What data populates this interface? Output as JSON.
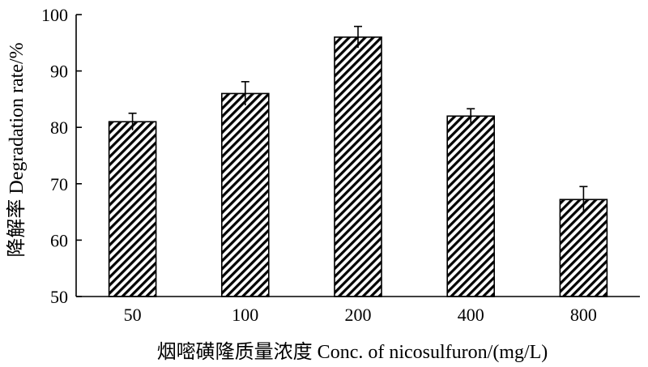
{
  "chart_data": {
    "type": "bar",
    "categories": [
      "50",
      "100",
      "200",
      "400",
      "800"
    ],
    "values": [
      81,
      86,
      96,
      82,
      67.2
    ],
    "errors": [
      1.5,
      2.1,
      1.9,
      1.3,
      2.3
    ],
    "ylim": [
      50,
      100
    ],
    "yticks": [
      "50",
      "60",
      "70",
      "80",
      "90",
      "100"
    ],
    "xlabel": "烟嘧磺隆质量浓度  Conc. of nicosulfuron/(mg/L)",
    "ylabel": "降解率  Degradation rate/%",
    "bar_pattern": "diagonal-hatch",
    "bar_color": "#000000",
    "grid": false,
    "legend": "none"
  }
}
